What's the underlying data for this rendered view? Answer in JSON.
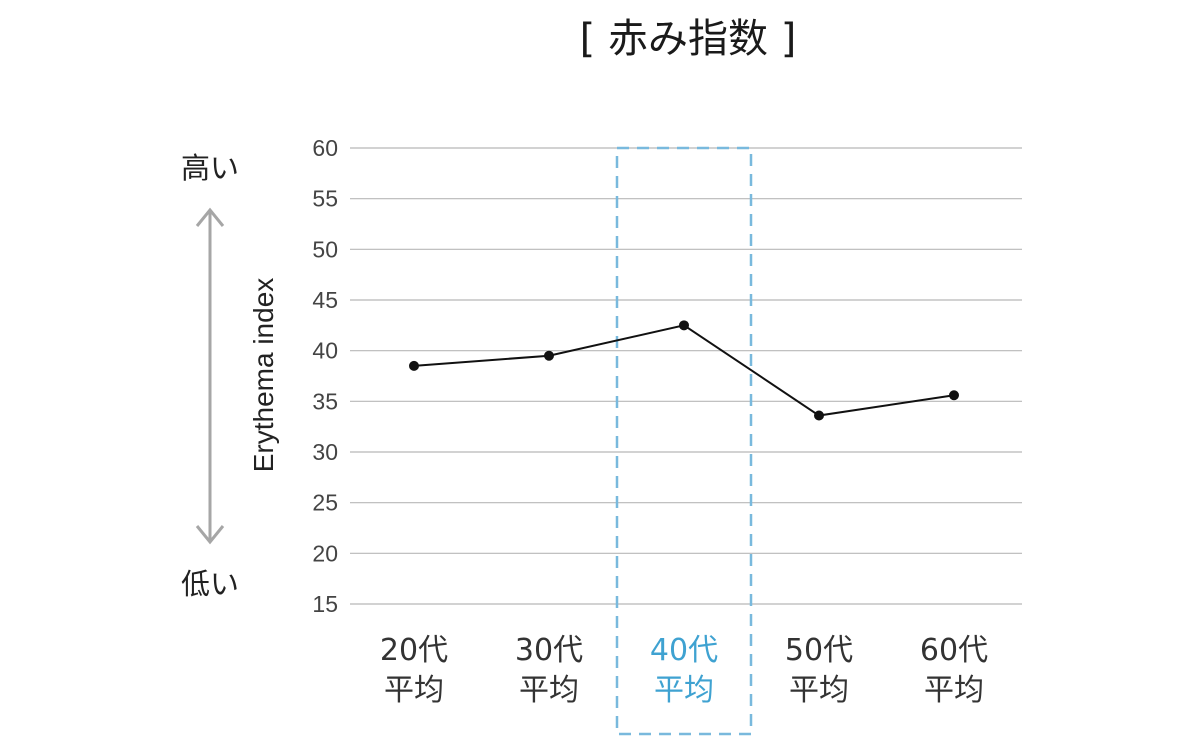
{
  "chart_data": {
    "type": "line",
    "title": "[ 赤み指数 ]",
    "ylabel": "Erythema index",
    "xlabel": "",
    "ylim": [
      15,
      60
    ],
    "yticks": [
      15,
      20,
      25,
      30,
      35,
      40,
      45,
      50,
      55,
      60
    ],
    "grid": true,
    "categories": [
      {
        "line1": "20代",
        "line2": "平均"
      },
      {
        "line1": "30代",
        "line2": "平均"
      },
      {
        "line1": "40代",
        "line2": "平均"
      },
      {
        "line1": "50代",
        "line2": "平均"
      },
      {
        "line1": "60代",
        "line2": "平均"
      }
    ],
    "series": [
      {
        "name": "Erythema index",
        "values": [
          38.5,
          39.5,
          42.5,
          33.6,
          35.6
        ]
      }
    ],
    "highlight_index": 2,
    "axis_indicator": {
      "high_label": "高い",
      "low_label": "低い"
    },
    "colors": {
      "highlight": "#3fa2d1",
      "highlight_box": "#79b9dd",
      "line": "#111111",
      "grid": "#b8b8b8",
      "arrow": "#a6a6a6"
    }
  }
}
